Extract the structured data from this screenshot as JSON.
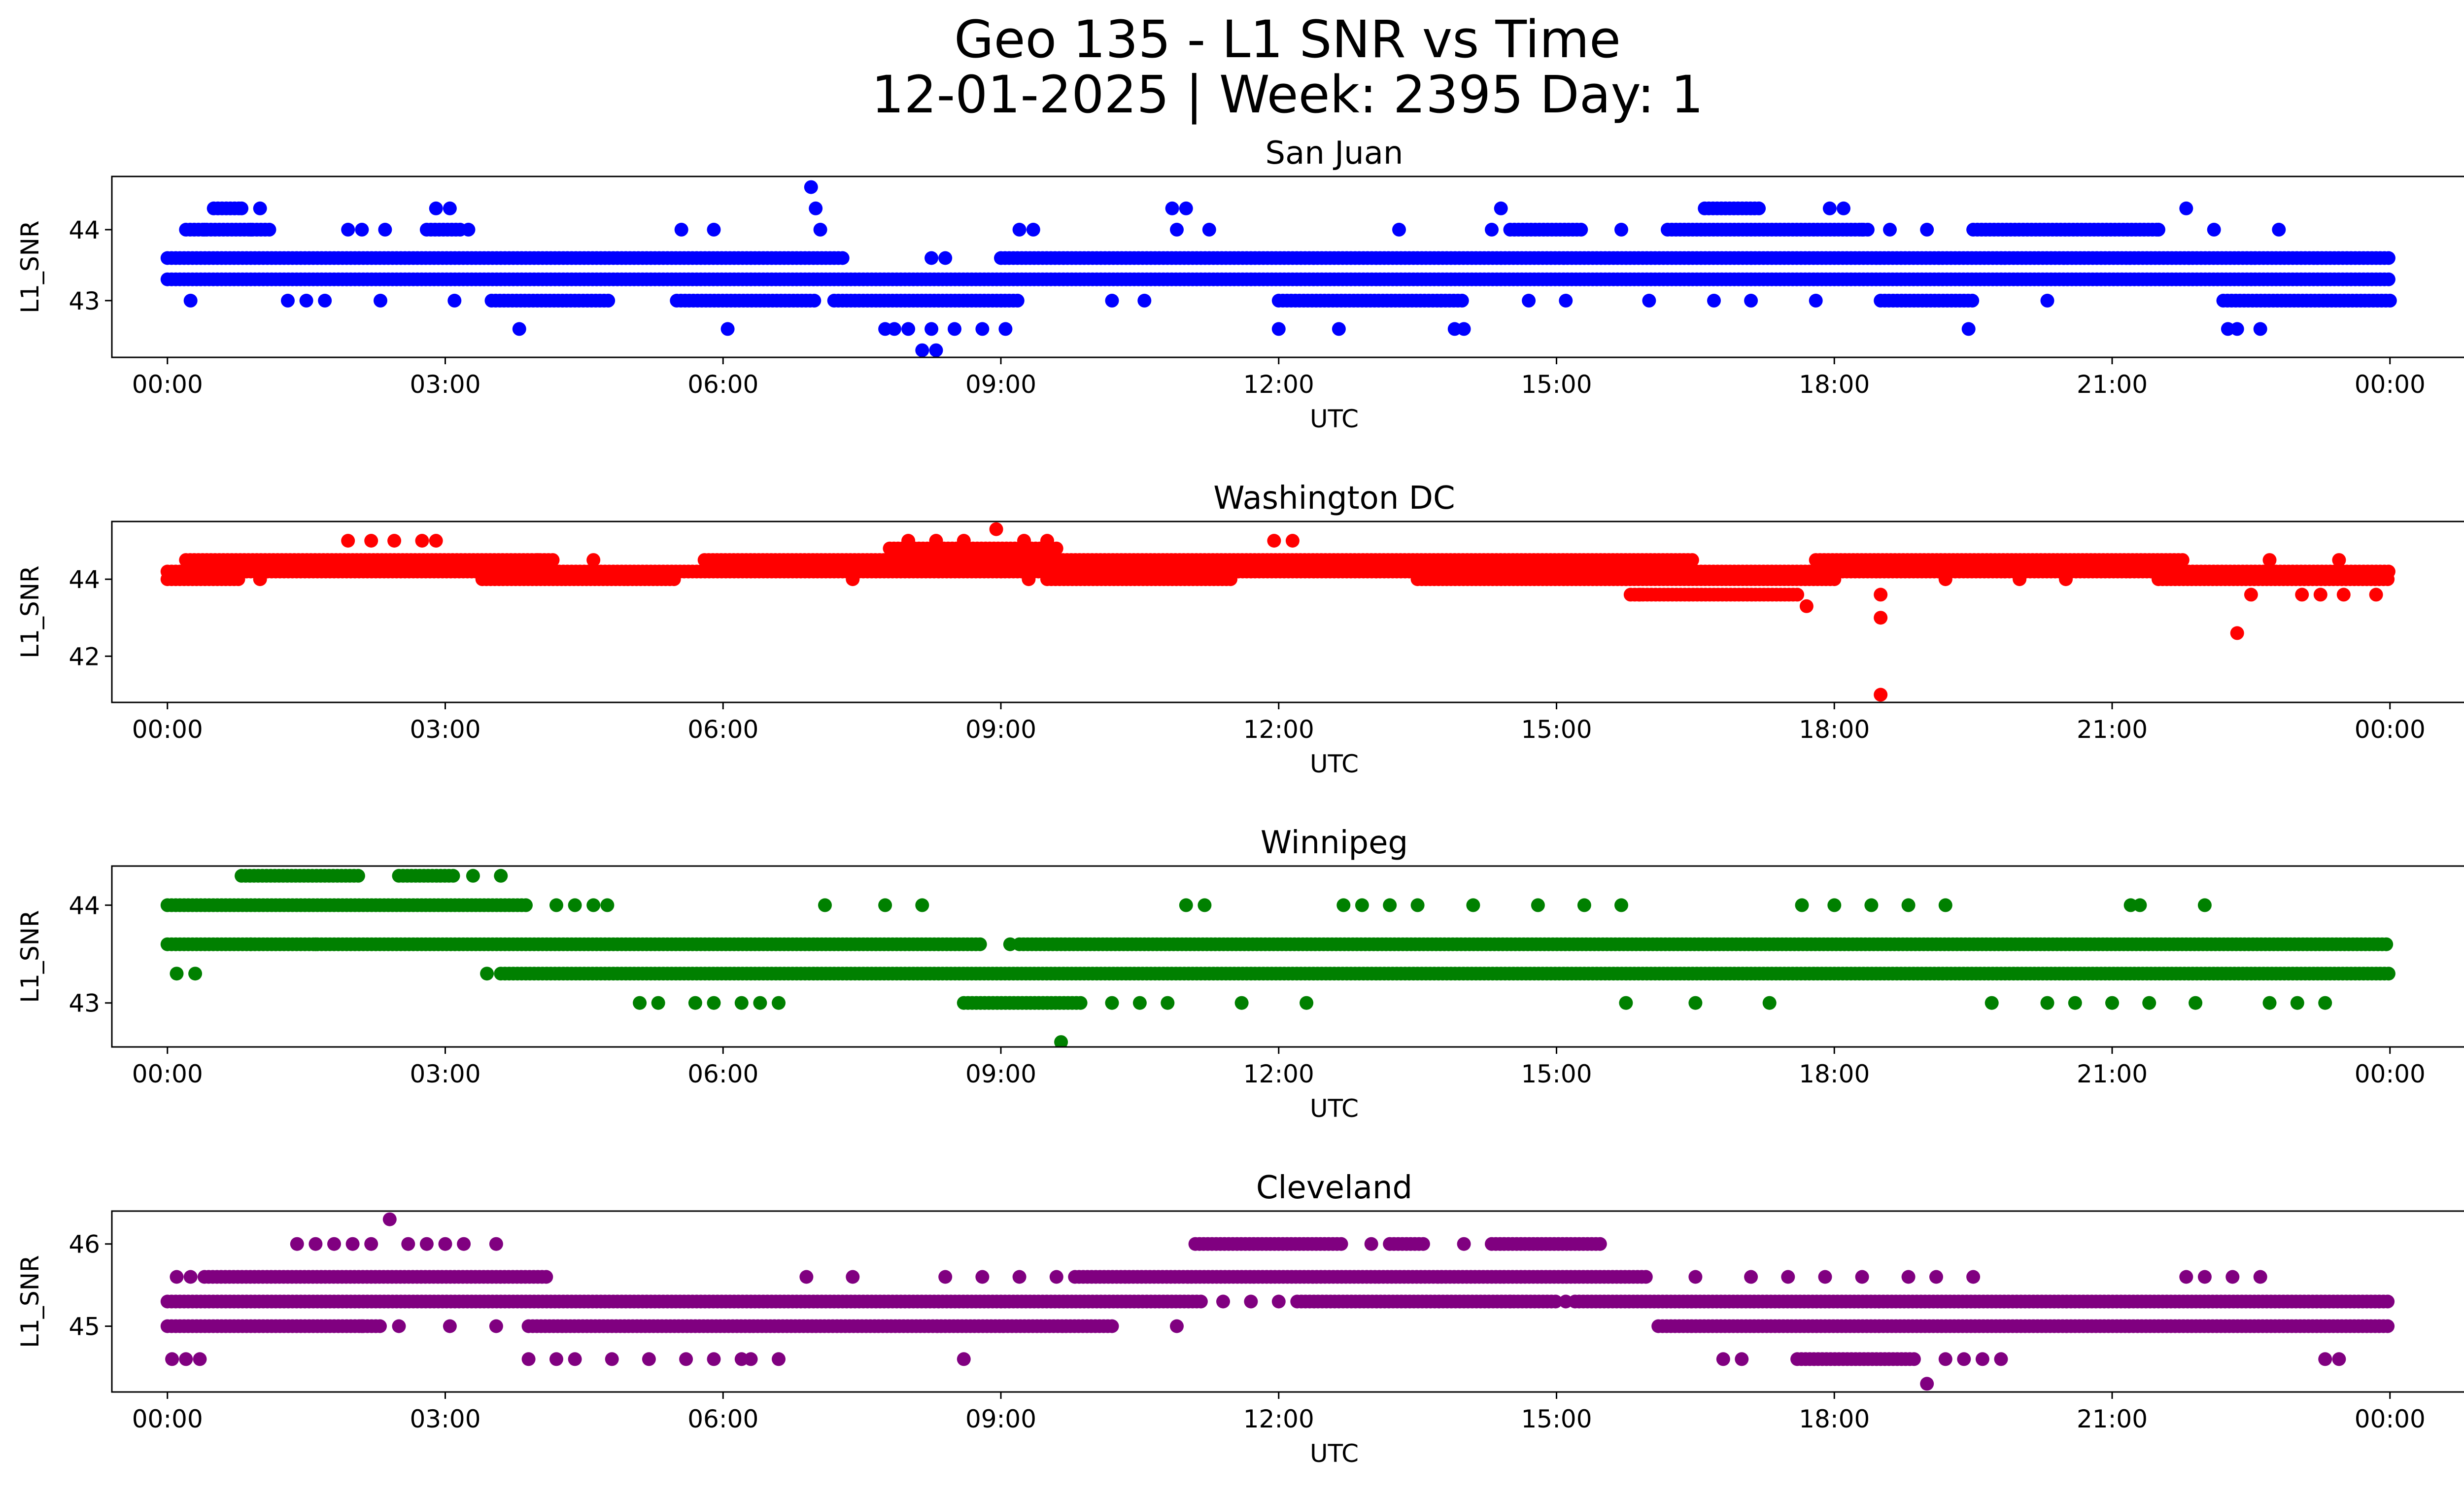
{
  "figure": {
    "title_line1": "Geo 135 - L1 SNR vs Time",
    "title_line2": "12-01-2025 | Week: 2395 Day: 1"
  },
  "chart_data": [
    {
      "type": "scatter",
      "title": "San Juan",
      "xlabel": "UTC",
      "ylabel": "L1_SNR",
      "color": "#0000ff",
      "x_unit": "hours",
      "xlim": [
        -0.6,
        25.8
      ],
      "ylim": [
        42.2,
        44.75
      ],
      "yticks": [
        43,
        44
      ],
      "xticks": [
        0,
        3,
        6,
        9,
        12,
        15,
        18,
        21,
        24
      ],
      "xtick_labels": [
        "00:00",
        "03:00",
        "06:00",
        "09:00",
        "12:00",
        "15:00",
        "18:00",
        "21:00",
        "00:00"
      ],
      "bands": [
        {
          "y": 43.6,
          "ranges": [
            [
              0,
              7.3
            ],
            [
              9.0,
              24
            ]
          ]
        },
        {
          "y": 43.3,
          "ranges": [
            [
              0,
              24
            ]
          ]
        },
        {
          "y": 43.0,
          "ranges": [
            [
              3.5,
              4.8
            ],
            [
              5.5,
              7.0
            ],
            [
              7.2,
              9.2
            ],
            [
              12.0,
              14.0
            ],
            [
              18.5,
              19.5
            ],
            [
              22.2,
              24
            ]
          ]
        },
        {
          "y": 44.0,
          "ranges": [
            [
              0.2,
              1.1
            ],
            [
              2.8,
              3.2
            ],
            [
              14.5,
              15.3
            ],
            [
              16.2,
              18.4
            ],
            [
              19.5,
              21.5
            ]
          ]
        },
        {
          "y": 44.3,
          "ranges": [
            [
              0.5,
              0.8
            ],
            [
              16.6,
              17.2
            ]
          ]
        }
      ],
      "points": [
        [
          0.25,
          43.0
        ],
        [
          0.4,
          44.0
        ],
        [
          0.8,
          44.3
        ],
        [
          0.9,
          44.0
        ],
        [
          1.0,
          44.3
        ],
        [
          1.3,
          43.0
        ],
        [
          1.5,
          43.0
        ],
        [
          1.7,
          43.0
        ],
        [
          1.95,
          44.0
        ],
        [
          2.1,
          44.0
        ],
        [
          2.3,
          43.0
        ],
        [
          2.35,
          44.0
        ],
        [
          2.9,
          44.3
        ],
        [
          3.05,
          44.3
        ],
        [
          3.1,
          43.0
        ],
        [
          3.25,
          44.0
        ],
        [
          3.8,
          42.6
        ],
        [
          5.55,
          44.0
        ],
        [
          5.9,
          44.0
        ],
        [
          6.05,
          42.6
        ],
        [
          6.95,
          44.6
        ],
        [
          7.0,
          44.3
        ],
        [
          7.05,
          44.0
        ],
        [
          7.75,
          42.6
        ],
        [
          7.85,
          42.6
        ],
        [
          8.0,
          42.6
        ],
        [
          8.15,
          42.3
        ],
        [
          8.25,
          42.6
        ],
        [
          8.3,
          42.3
        ],
        [
          8.5,
          42.6
        ],
        [
          8.8,
          42.6
        ],
        [
          9.05,
          42.6
        ],
        [
          8.4,
          43.6
        ],
        [
          8.25,
          43.6
        ],
        [
          9.2,
          44.0
        ],
        [
          9.35,
          44.0
        ],
        [
          10.2,
          43.0
        ],
        [
          10.55,
          43.0
        ],
        [
          10.85,
          44.3
        ],
        [
          11.0,
          44.3
        ],
        [
          10.9,
          44.0
        ],
        [
          11.25,
          44.0
        ],
        [
          12.0,
          42.6
        ],
        [
          12.65,
          42.6
        ],
        [
          13.3,
          44.0
        ],
        [
          13.9,
          42.6
        ],
        [
          14.0,
          42.6
        ],
        [
          14.4,
          44.3
        ],
        [
          14.7,
          43.0
        ],
        [
          15.1,
          43.0
        ],
        [
          16.0,
          43.0
        ],
        [
          16.7,
          43.0
        ],
        [
          17.1,
          43.0
        ],
        [
          17.8,
          43.0
        ],
        [
          17.95,
          44.3
        ],
        [
          18.1,
          44.3
        ],
        [
          18.3,
          44.0
        ],
        [
          18.6,
          44.0
        ],
        [
          19.0,
          44.0
        ],
        [
          19.45,
          42.6
        ],
        [
          20.3,
          43.0
        ],
        [
          21.5,
          44.0
        ],
        [
          21.8,
          44.3
        ],
        [
          22.1,
          44.0
        ],
        [
          22.25,
          42.6
        ],
        [
          22.35,
          42.6
        ],
        [
          22.6,
          42.6
        ],
        [
          22.8,
          44.0
        ],
        [
          14.3,
          44.0
        ],
        [
          15.7,
          44.0
        ]
      ]
    },
    {
      "type": "scatter",
      "title": "Washington DC",
      "xlabel": "UTC",
      "ylabel": "L1_SNR",
      "color": "#ff0000",
      "x_unit": "hours",
      "xlim": [
        -0.6,
        25.8
      ],
      "ylim": [
        40.8,
        45.5
      ],
      "yticks": [
        42,
        44
      ],
      "xticks": [
        0,
        3,
        6,
        9,
        12,
        15,
        18,
        21,
        24
      ],
      "xtick_labels": [
        "00:00",
        "03:00",
        "06:00",
        "09:00",
        "12:00",
        "15:00",
        "18:00",
        "21:00",
        "00:00"
      ],
      "bands": [
        {
          "y": 44.5,
          "ranges": [
            [
              0.2,
              4.2
            ],
            [
              5.8,
              16.5
            ],
            [
              17.8,
              21.8
            ]
          ]
        },
        {
          "y": 44.2,
          "ranges": [
            [
              0,
              24
            ]
          ]
        },
        {
          "y": 44.0,
          "ranges": [
            [
              0,
              0.8
            ],
            [
              3.4,
              5.5
            ],
            [
              9.5,
              11.5
            ],
            [
              13.5,
              18.0
            ],
            [
              21.5,
              24
            ]
          ]
        },
        {
          "y": 43.6,
          "ranges": [
            [
              15.8,
              17.6
            ]
          ]
        },
        {
          "y": 44.8,
          "ranges": [
            [
              7.8,
              9.6
            ]
          ]
        }
      ],
      "points": [
        [
          1.95,
          45.0
        ],
        [
          2.2,
          45.0
        ],
        [
          2.45,
          45.0
        ],
        [
          2.75,
          45.0
        ],
        [
          2.9,
          45.0
        ],
        [
          8.0,
          45.0
        ],
        [
          8.3,
          45.0
        ],
        [
          8.6,
          45.0
        ],
        [
          8.95,
          45.3
        ],
        [
          9.25,
          45.0
        ],
        [
          9.5,
          45.0
        ],
        [
          11.95,
          45.0
        ],
        [
          12.15,
          45.0
        ],
        [
          1.0,
          44.0
        ],
        [
          4.0,
          44.5
        ],
        [
          4.6,
          44.5
        ],
        [
          7.4,
          44.0
        ],
        [
          9.3,
          44.0
        ],
        [
          17.7,
          43.3
        ],
        [
          18.5,
          43.6
        ],
        [
          18.5,
          43.0
        ],
        [
          18.5,
          41.0
        ],
        [
          22.35,
          42.6
        ],
        [
          22.5,
          43.6
        ],
        [
          23.05,
          43.6
        ],
        [
          23.25,
          43.6
        ],
        [
          23.45,
          44.5
        ],
        [
          23.5,
          43.6
        ],
        [
          23.85,
          43.6
        ],
        [
          22.7,
          44.5
        ],
        [
          20.0,
          44.0
        ],
        [
          20.5,
          44.0
        ],
        [
          19.2,
          44.0
        ],
        [
          15.9,
          43.6
        ]
      ]
    },
    {
      "type": "scatter",
      "title": "Winnipeg",
      "xlabel": "UTC",
      "ylabel": "L1_SNR",
      "color": "#008000",
      "x_unit": "hours",
      "xlim": [
        -0.6,
        25.8
      ],
      "ylim": [
        42.55,
        44.4
      ],
      "yticks": [
        43,
        44
      ],
      "xticks": [
        0,
        3,
        6,
        9,
        12,
        15,
        18,
        21,
        24
      ],
      "xtick_labels": [
        "00:00",
        "03:00",
        "06:00",
        "09:00",
        "12:00",
        "15:00",
        "18:00",
        "21:00",
        "00:00"
      ],
      "bands": [
        {
          "y": 44.0,
          "ranges": [
            [
              0,
              3.9
            ]
          ]
        },
        {
          "y": 43.6,
          "ranges": [
            [
              0,
              8.8
            ],
            [
              9.2,
              24
            ]
          ]
        },
        {
          "y": 43.3,
          "ranges": [
            [
              3.6,
              24
            ]
          ]
        },
        {
          "y": 44.3,
          "ranges": [
            [
              0.8,
              2.1
            ],
            [
              2.5,
              3.1
            ]
          ]
        },
        {
          "y": 43.0,
          "ranges": [
            [
              8.6,
              9.9
            ]
          ]
        }
      ],
      "points": [
        [
          0.1,
          43.3
        ],
        [
          0.3,
          43.3
        ],
        [
          3.3,
          44.3
        ],
        [
          3.6,
          44.3
        ],
        [
          3.45,
          43.3
        ],
        [
          4.2,
          44.0
        ],
        [
          4.4,
          44.0
        ],
        [
          4.6,
          44.0
        ],
        [
          4.75,
          44.0
        ],
        [
          5.1,
          43.0
        ],
        [
          5.3,
          43.0
        ],
        [
          5.7,
          43.0
        ],
        [
          5.9,
          43.0
        ],
        [
          6.2,
          43.0
        ],
        [
          6.4,
          43.0
        ],
        [
          6.6,
          43.0
        ],
        [
          7.1,
          44.0
        ],
        [
          7.75,
          44.0
        ],
        [
          8.15,
          44.0
        ],
        [
          10.2,
          43.0
        ],
        [
          10.5,
          43.0
        ],
        [
          10.8,
          43.0
        ],
        [
          11.0,
          44.0
        ],
        [
          11.2,
          44.0
        ],
        [
          11.6,
          43.0
        ],
        [
          12.3,
          43.0
        ],
        [
          12.7,
          44.0
        ],
        [
          12.9,
          44.0
        ],
        [
          13.2,
          44.0
        ],
        [
          13.5,
          44.0
        ],
        [
          14.1,
          44.0
        ],
        [
          14.8,
          44.0
        ],
        [
          15.3,
          44.0
        ],
        [
          15.7,
          44.0
        ],
        [
          15.75,
          43.0
        ],
        [
          16.5,
          43.0
        ],
        [
          17.3,
          43.0
        ],
        [
          17.65,
          44.0
        ],
        [
          18.0,
          44.0
        ],
        [
          18.4,
          44.0
        ],
        [
          18.8,
          44.0
        ],
        [
          19.2,
          44.0
        ],
        [
          19.7,
          43.0
        ],
        [
          20.3,
          43.0
        ],
        [
          20.6,
          43.0
        ],
        [
          21.0,
          43.0
        ],
        [
          21.4,
          43.0
        ],
        [
          21.2,
          44.0
        ],
        [
          21.3,
          44.0
        ],
        [
          21.9,
          43.0
        ],
        [
          22.0,
          44.0
        ],
        [
          22.7,
          43.0
        ],
        [
          23.0,
          43.0
        ],
        [
          23.3,
          43.0
        ],
        [
          9.65,
          42.6
        ],
        [
          9.1,
          43.6
        ],
        [
          1.6,
          43.6
        ],
        [
          0.9,
          43.6
        ]
      ]
    },
    {
      "type": "scatter",
      "title": "Cleveland",
      "xlabel": "UTC",
      "ylabel": "L1_SNR",
      "color": "#800080",
      "x_unit": "hours",
      "xlim": [
        -0.6,
        25.8
      ],
      "ylim": [
        44.2,
        46.4
      ],
      "yticks": [
        45,
        46
      ],
      "xticks": [
        0,
        3,
        6,
        9,
        12,
        15,
        18,
        21,
        24
      ],
      "xtick_labels": [
        "00:00",
        "03:00",
        "06:00",
        "09:00",
        "12:00",
        "15:00",
        "18:00",
        "21:00",
        "00:00"
      ],
      "bands": [
        {
          "y": 45.3,
          "ranges": [
            [
              0,
              11.2
            ],
            [
              12.2,
              15.0
            ],
            [
              15.2,
              24
            ]
          ]
        },
        {
          "y": 45.0,
          "ranges": [
            [
              0,
              2.3
            ],
            [
              3.9,
              10.2
            ],
            [
              16.1,
              24
            ]
          ]
        },
        {
          "y": 45.6,
          "ranges": [
            [
              0.4,
              4.1
            ],
            [
              9.8,
              16.0
            ]
          ]
        },
        {
          "y": 46.0,
          "ranges": [
            [
              11.1,
              12.7
            ],
            [
              13.2,
              13.6
            ],
            [
              14.3,
              15.5
            ]
          ]
        },
        {
          "y": 44.6,
          "ranges": [
            [
              17.6,
              18.9
            ]
          ]
        }
      ],
      "points": [
        [
          0.05,
          44.6
        ],
        [
          0.2,
          44.6
        ],
        [
          0.35,
          44.6
        ],
        [
          0.1,
          45.6
        ],
        [
          0.25,
          45.6
        ],
        [
          1.4,
          46.0
        ],
        [
          1.6,
          46.0
        ],
        [
          1.8,
          46.0
        ],
        [
          2.0,
          46.0
        ],
        [
          2.2,
          46.0
        ],
        [
          2.4,
          46.3
        ],
        [
          2.6,
          46.0
        ],
        [
          2.8,
          46.0
        ],
        [
          3.0,
          46.0
        ],
        [
          3.2,
          46.0
        ],
        [
          3.55,
          46.0
        ],
        [
          2.1,
          45.0
        ],
        [
          2.5,
          45.0
        ],
        [
          3.05,
          45.0
        ],
        [
          3.55,
          45.0
        ],
        [
          3.9,
          44.6
        ],
        [
          4.2,
          44.6
        ],
        [
          4.4,
          44.6
        ],
        [
          4.8,
          44.6
        ],
        [
          5.2,
          44.6
        ],
        [
          5.6,
          44.6
        ],
        [
          5.9,
          44.6
        ],
        [
          6.2,
          44.6
        ],
        [
          6.3,
          44.6
        ],
        [
          6.6,
          44.6
        ],
        [
          8.6,
          44.6
        ],
        [
          6.9,
          45.6
        ],
        [
          7.4,
          45.6
        ],
        [
          8.4,
          45.6
        ],
        [
          8.8,
          45.6
        ],
        [
          9.2,
          45.6
        ],
        [
          9.6,
          45.6
        ],
        [
          10.9,
          45.0
        ],
        [
          11.4,
          45.3
        ],
        [
          11.7,
          45.3
        ],
        [
          12.0,
          45.3
        ],
        [
          13.0,
          46.0
        ],
        [
          14.0,
          46.0
        ],
        [
          14.5,
          45.3
        ],
        [
          15.1,
          45.3
        ],
        [
          16.5,
          45.6
        ],
        [
          16.8,
          44.6
        ],
        [
          17.0,
          44.6
        ],
        [
          17.1,
          45.6
        ],
        [
          17.5,
          45.6
        ],
        [
          17.9,
          45.6
        ],
        [
          18.3,
          45.6
        ],
        [
          18.8,
          45.6
        ],
        [
          19.0,
          44.3
        ],
        [
          19.2,
          44.6
        ],
        [
          19.4,
          44.6
        ],
        [
          19.6,
          44.6
        ],
        [
          19.8,
          44.6
        ],
        [
          19.1,
          45.6
        ],
        [
          19.5,
          45.6
        ],
        [
          22.3,
          45.6
        ],
        [
          22.6,
          45.6
        ],
        [
          23.3,
          44.6
        ],
        [
          23.45,
          44.6
        ],
        [
          21.8,
          45.6
        ],
        [
          22.0,
          45.6
        ]
      ]
    }
  ]
}
